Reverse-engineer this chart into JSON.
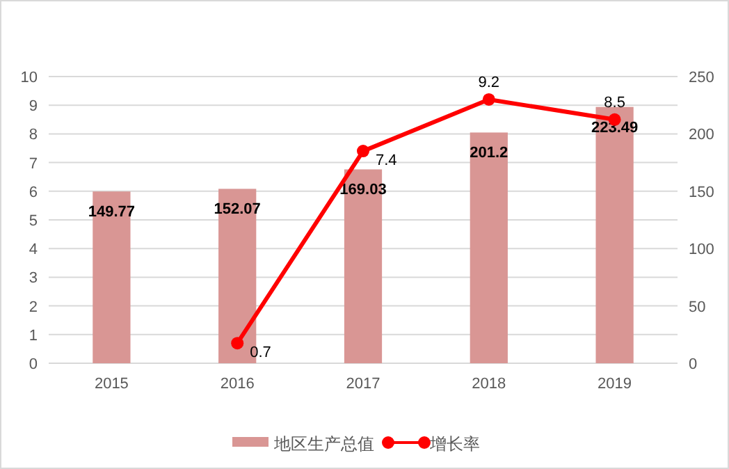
{
  "chart_data": {
    "type": "bar",
    "categories": [
      "2015",
      "2016",
      "2017",
      "2018",
      "2019"
    ],
    "series": [
      {
        "name": "地区生产总值",
        "axis": "y2",
        "color": "#d99694",
        "values": [
          149.77,
          152.07,
          169.03,
          201.2,
          223.49
        ]
      },
      {
        "name": "增长率",
        "type": "line",
        "color": "#ff0000",
        "values": [
          null,
          0.7,
          7.4,
          9.2,
          8.5
        ]
      }
    ],
    "ylim": [
      0,
      10
    ],
    "yticks": [
      0,
      1,
      2,
      3,
      4,
      5,
      6,
      7,
      8,
      9,
      10
    ],
    "y2lim": [
      0,
      250
    ],
    "y2ticks": [
      0,
      50,
      100,
      150,
      200,
      250
    ],
    "grid": "y",
    "legend": "bottom",
    "marker": "circle",
    "line_style": "solid",
    "data_labels": true
  }
}
